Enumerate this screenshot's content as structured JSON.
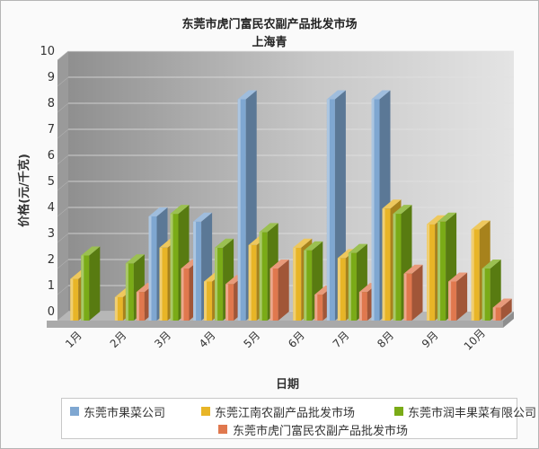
{
  "chart_data": {
    "type": "bar",
    "title": "东莞市虎门富民农副产品批发市场",
    "subtitle": "上海青",
    "xlabel": "日期",
    "ylabel": "价格(元/千克)",
    "categories": [
      "1月",
      "2月",
      "3月",
      "4月",
      "5月",
      "6月",
      "7月",
      "8月",
      "9月",
      "10月"
    ],
    "yticks": [
      "0",
      "1",
      "2",
      "3",
      "4",
      "5",
      "6",
      "7",
      "8",
      "9",
      "10"
    ],
    "ylim": [
      0,
      10
    ],
    "grid": true,
    "legend_position": "bottom",
    "series": [
      {
        "name": "东莞市果菜公司",
        "color": "#7fa7d1",
        "values": [
          null,
          null,
          4.0,
          3.8,
          8.5,
          null,
          8.5,
          8.5,
          null,
          null
        ]
      },
      {
        "name": "东莞江南农副产品批发市场",
        "color": "#e8b527",
        "values": [
          1.6,
          0.9,
          2.8,
          1.5,
          2.9,
          2.8,
          2.4,
          4.3,
          3.7,
          3.5
        ]
      },
      {
        "name": "东莞市润丰果菜有限公司",
        "color": "#7aab17",
        "values": [
          2.5,
          2.2,
          4.1,
          2.8,
          3.4,
          2.7,
          2.6,
          4.1,
          3.8,
          2.0
        ]
      },
      {
        "name": "东莞市虎门富民农副产品批发市场",
        "color": "#e0784e",
        "values": [
          null,
          1.1,
          2.0,
          1.4,
          2.0,
          1.0,
          1.1,
          1.8,
          1.5,
          0.5
        ]
      }
    ]
  }
}
